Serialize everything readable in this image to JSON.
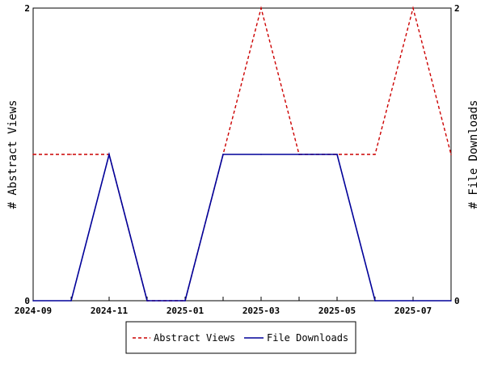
{
  "chart_data": {
    "type": "line",
    "x": [
      "2024-09",
      "2024-10",
      "2024-11",
      "2024-12",
      "2025-01",
      "2025-02",
      "2025-03",
      "2025-04",
      "2025-05",
      "2025-06",
      "2025-07",
      "2025-08"
    ],
    "x_tick_labels": [
      "2024-09",
      "2024-11",
      "2025-01",
      "2025-03",
      "2025-05",
      "2025-07"
    ],
    "series": [
      {
        "name": "Abstract Views",
        "values": [
          1,
          1,
          1,
          0,
          0,
          1,
          2,
          1,
          1,
          1,
          2,
          1
        ],
        "color": "#cc0000",
        "style": "dashed"
      },
      {
        "name": "File Downloads",
        "values": [
          0,
          0,
          1,
          0,
          0,
          1,
          1,
          1,
          1,
          0,
          0,
          0
        ],
        "color": "#000099",
        "style": "solid"
      }
    ],
    "ylabel": "# Abstract Views",
    "y2label": "# File Downloads",
    "ylim": [
      0,
      2
    ],
    "y2lim": [
      0,
      2
    ],
    "y_tick_labels": [
      "0",
      "2"
    ],
    "y2_tick_labels": [
      "0",
      "2"
    ],
    "grid": false,
    "legend_position": "bottom"
  }
}
